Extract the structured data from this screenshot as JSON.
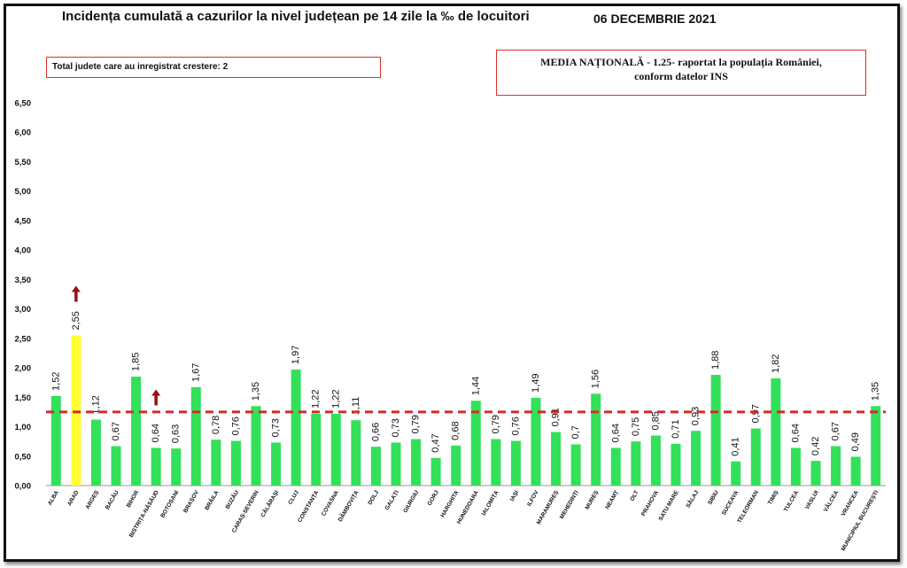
{
  "title": "Incidența cumulată a cazurilor la nivel județean pe 14 zile la ‰ de locuitori",
  "date": "06 DECEMBRIE 2021",
  "note_left": "Total judete care au inregistrat crestere: 2",
  "note_right_line1": "MEDIA NAȚIONALĂ - 1.25-  raportat la populația României,",
  "note_right_line2": "conform datelor INS",
  "colors": {
    "bar": "#33e05a",
    "highlight": "#ffff33",
    "average_line": "#d42a2a",
    "arrow": "#9a1010"
  },
  "chart_data": {
    "type": "bar",
    "ylim": [
      0,
      6.5
    ],
    "yticks": [
      "0,00",
      "0,50",
      "1,00",
      "1,50",
      "2,00",
      "2,50",
      "3,00",
      "3,50",
      "4,00",
      "4,50",
      "5,00",
      "5,50",
      "6,00",
      "6,50"
    ],
    "reference_line": 1.25,
    "highlighted": [
      "ARAD"
    ],
    "increase_arrows": [
      "ARAD",
      "BISTRIȚA-NĂSĂUD"
    ],
    "categories": [
      "ALBA",
      "ARAD",
      "ARGEȘ",
      "BACĂU",
      "BIHOR",
      "BISTRIȚA-NĂSĂUD",
      "BOTOȘANI",
      "BRAȘOV",
      "BRĂILA",
      "BUZĂU",
      "CARAȘ-SEVERIN",
      "CĂLĂRAȘI",
      "CLUJ",
      "CONSTANȚA",
      "COVASNA",
      "DÂMBOVIȚA",
      "DOLJ",
      "GALAȚI",
      "GIURGIU",
      "GORJ",
      "HARGHITA",
      "HUNEDOARA",
      "IALOMIȚA",
      "IAȘI",
      "ILFOV",
      "MARAMUREȘ",
      "MEHEDINȚI",
      "MUREȘ",
      "NEAMȚ",
      "OLT",
      "PRAHOVA",
      "SATU MARE",
      "SĂLAJ",
      "SIBIU",
      "SUCEAVA",
      "TELEORMAN",
      "TIMIȘ",
      "TULCEA",
      "VASLUI",
      "VÂLCEA",
      "VRANCEA",
      "MUNICIPIUL BUCUREȘTI"
    ],
    "values": [
      1.52,
      2.55,
      1.12,
      0.67,
      1.85,
      0.64,
      0.63,
      1.67,
      0.78,
      0.76,
      1.35,
      0.73,
      1.97,
      1.22,
      1.22,
      1.11,
      0.66,
      0.73,
      0.79,
      0.47,
      0.68,
      1.44,
      0.79,
      0.76,
      1.49,
      0.91,
      0.7,
      1.56,
      0.64,
      0.75,
      0.85,
      0.71,
      0.93,
      1.88,
      0.41,
      0.97,
      1.82,
      0.64,
      0.42,
      0.67,
      0.49,
      1.35
    ],
    "labels": [
      "1,52",
      "2,55",
      "1,12",
      "0,67",
      "1,85",
      "0,64",
      "0,63",
      "1,67",
      "0,78",
      "0,76",
      "1,35",
      "0,73",
      "1,97",
      "1,22",
      "1,22",
      "1,11",
      "0,66",
      "0,73",
      "0,79",
      "0,47",
      "0,68",
      "1,44",
      "0,79",
      "0,76",
      "1,49",
      "0,91",
      "0,7",
      "1,56",
      "0,64",
      "0,75",
      "0,85",
      "0,71",
      "0,93",
      "1,88",
      "0,41",
      "0,97",
      "1,82",
      "0,64",
      "0,42",
      "0,67",
      "0,49",
      "1,35"
    ]
  }
}
